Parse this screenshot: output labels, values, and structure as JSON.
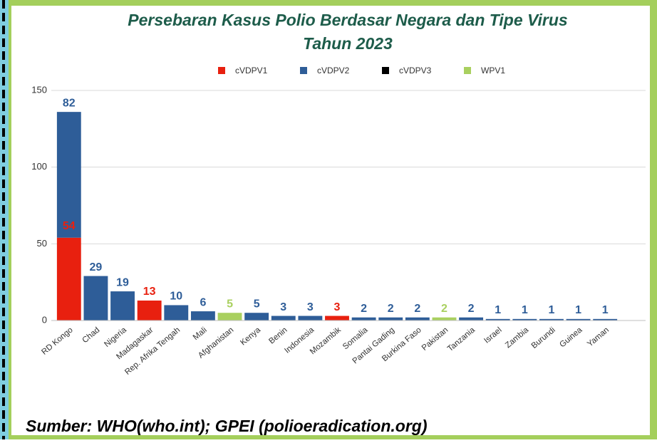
{
  "chart_data": {
    "type": "stacked_bar",
    "title": "Persebaran Kasus Polio Berdasar Negara  dan Tipe Virus",
    "subtitle": "Tahun 2023",
    "source": "Sumber: WHO(who.int); GPEI (polioeradication.org)",
    "categories": [
      "RD Kongo",
      "Chad",
      "Nigeria",
      "Madagaskar",
      "Rep. Afrika Tengah",
      "Mali",
      "Afghanistan",
      "Kenya",
      "Benin",
      "Indonesia",
      "Mozambik",
      "Somalia",
      "Pantai Gading",
      "Burkina Faso",
      "Pakistan",
      "Tanzania",
      "Israel",
      "Zambia",
      "Burundi",
      "Guinea",
      "Yaman"
    ],
    "series": [
      {
        "name": "cVDPV1",
        "color": "#e8200f",
        "values": [
          54,
          null,
          null,
          13,
          null,
          null,
          null,
          null,
          null,
          null,
          3,
          null,
          null,
          null,
          null,
          null,
          null,
          null,
          null,
          null,
          null
        ]
      },
      {
        "name": "cVDPV2",
        "color": "#2e5d98",
        "values": [
          82,
          29,
          19,
          null,
          10,
          6,
          null,
          5,
          3,
          3,
          null,
          2,
          2,
          2,
          null,
          2,
          1,
          1,
          1,
          1,
          1
        ]
      },
      {
        "name": "cVDPV3",
        "color": "#000000",
        "values": [
          null,
          null,
          null,
          null,
          null,
          null,
          null,
          null,
          null,
          null,
          null,
          null,
          null,
          null,
          null,
          null,
          null,
          null,
          null,
          null,
          null
        ]
      },
      {
        "name": "WPV1",
        "color": "#a9d05f",
        "values": [
          null,
          null,
          null,
          null,
          null,
          null,
          5,
          null,
          null,
          null,
          null,
          null,
          null,
          null,
          2,
          null,
          null,
          null,
          null,
          null,
          null
        ]
      }
    ],
    "ylim": [
      0,
      150
    ],
    "yticks": [
      0,
      50,
      100,
      150
    ],
    "grid": true,
    "legend": "top"
  }
}
